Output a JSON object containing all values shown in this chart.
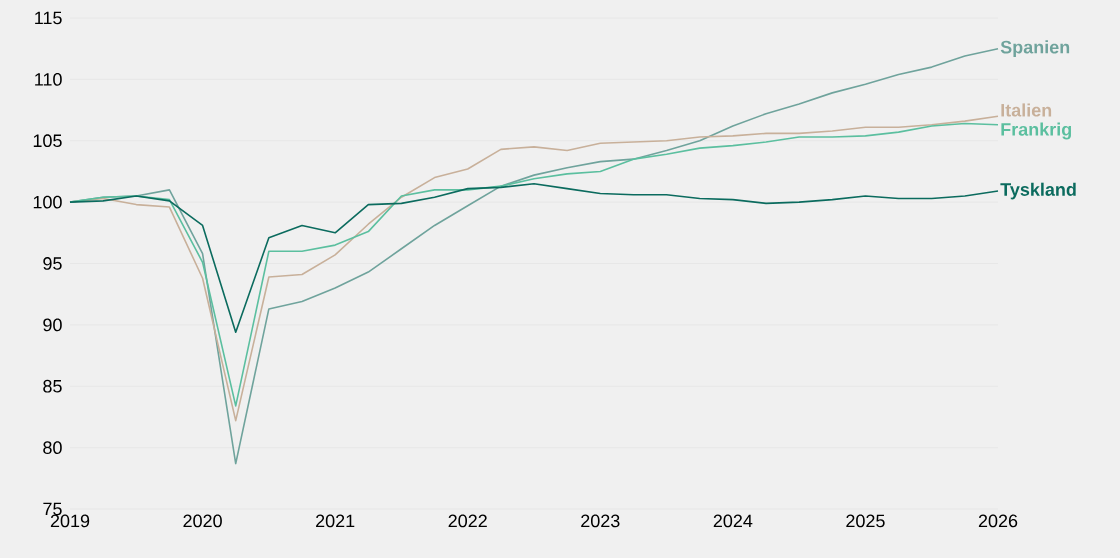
{
  "chart_data": {
    "type": "line",
    "x": [
      2019,
      2019.25,
      2019.5,
      2019.75,
      2020,
      2020.25,
      2020.5,
      2020.75,
      2021,
      2021.25,
      2021.5,
      2021.75,
      2022,
      2022.25,
      2022.5,
      2022.75,
      2023,
      2023.25,
      2023.5,
      2023.75,
      2024,
      2024.25,
      2024.5,
      2024.75,
      2025,
      2025.25,
      2025.5,
      2025.75,
      2026
    ],
    "series": [
      {
        "name": "Spanien",
        "color": "#6fa39c",
        "values": [
          100,
          100.4,
          100.5,
          101.0,
          95.8,
          78.7,
          91.3,
          91.9,
          93.0,
          94.3,
          96.2,
          98.1,
          99.7,
          101.3,
          102.2,
          102.8,
          103.3,
          103.5,
          104.2,
          105.0,
          106.2,
          107.2,
          108.0,
          108.9,
          109.6,
          110.4,
          111.0,
          111.9,
          112.5
        ]
      },
      {
        "name": "Italien",
        "color": "#c8b09a",
        "values": [
          100,
          100.3,
          99.8,
          99.6,
          93.8,
          82.2,
          93.9,
          94.1,
          95.7,
          98.2,
          100.4,
          102.0,
          102.7,
          104.3,
          104.5,
          104.2,
          104.8,
          104.9,
          105.0,
          105.3,
          105.4,
          105.6,
          105.6,
          105.8,
          106.1,
          106.1,
          106.3,
          106.6,
          107.0
        ]
      },
      {
        "name": "Frankrig",
        "color": "#5bbf9f",
        "values": [
          100,
          100.4,
          100.5,
          100.2,
          95.1,
          83.4,
          96.0,
          96.0,
          96.5,
          97.6,
          100.5,
          101.0,
          101.0,
          101.3,
          101.9,
          102.3,
          102.5,
          103.5,
          103.9,
          104.4,
          104.6,
          104.9,
          105.3,
          105.3,
          105.4,
          105.7,
          106.2,
          106.4,
          106.3
        ]
      },
      {
        "name": "Tyskland",
        "color": "#0b6b5e",
        "values": [
          100,
          100.1,
          100.5,
          100.1,
          98.1,
          89.4,
          97.1,
          98.1,
          97.5,
          99.8,
          99.9,
          100.4,
          101.1,
          101.2,
          101.5,
          101.1,
          100.7,
          100.6,
          100.6,
          100.3,
          100.2,
          99.9,
          100.0,
          100.2,
          100.5,
          100.3,
          100.3,
          100.5,
          100.9
        ]
      }
    ],
    "xlim": [
      2019,
      2026
    ],
    "ylim": [
      75,
      115
    ],
    "xticks": [
      2019,
      2020,
      2021,
      2022,
      2023,
      2024,
      2025,
      2026
    ],
    "yticks": [
      75,
      80,
      85,
      90,
      95,
      100,
      105,
      110,
      115
    ],
    "grid": "y"
  }
}
